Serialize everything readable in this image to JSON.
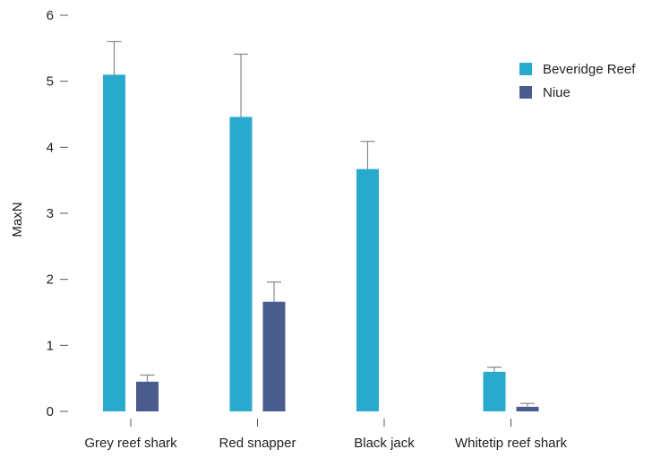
{
  "chart_data": {
    "type": "bar",
    "title": "",
    "xlabel": "",
    "ylabel": "MaxN",
    "ylim": [
      0,
      6
    ],
    "yticks": [
      0,
      1,
      2,
      3,
      4,
      5,
      6
    ],
    "grid": false,
    "legend_position": "top-right",
    "categories": [
      "Grey reef shark",
      "Red snapper",
      "Black jack",
      "Whitetip reef shark"
    ],
    "series": [
      {
        "name": "Beveridge Reef",
        "color": "#29aacc",
        "values": [
          5.1,
          4.46,
          3.67,
          0.6
        ],
        "error": [
          0.5,
          0.95,
          0.42,
          0.07
        ]
      },
      {
        "name": "Niue",
        "color": "#4a5c8e",
        "values": [
          0.45,
          1.66,
          0,
          0.07
        ],
        "error": [
          0.1,
          0.3,
          null,
          0.05
        ]
      }
    ]
  }
}
